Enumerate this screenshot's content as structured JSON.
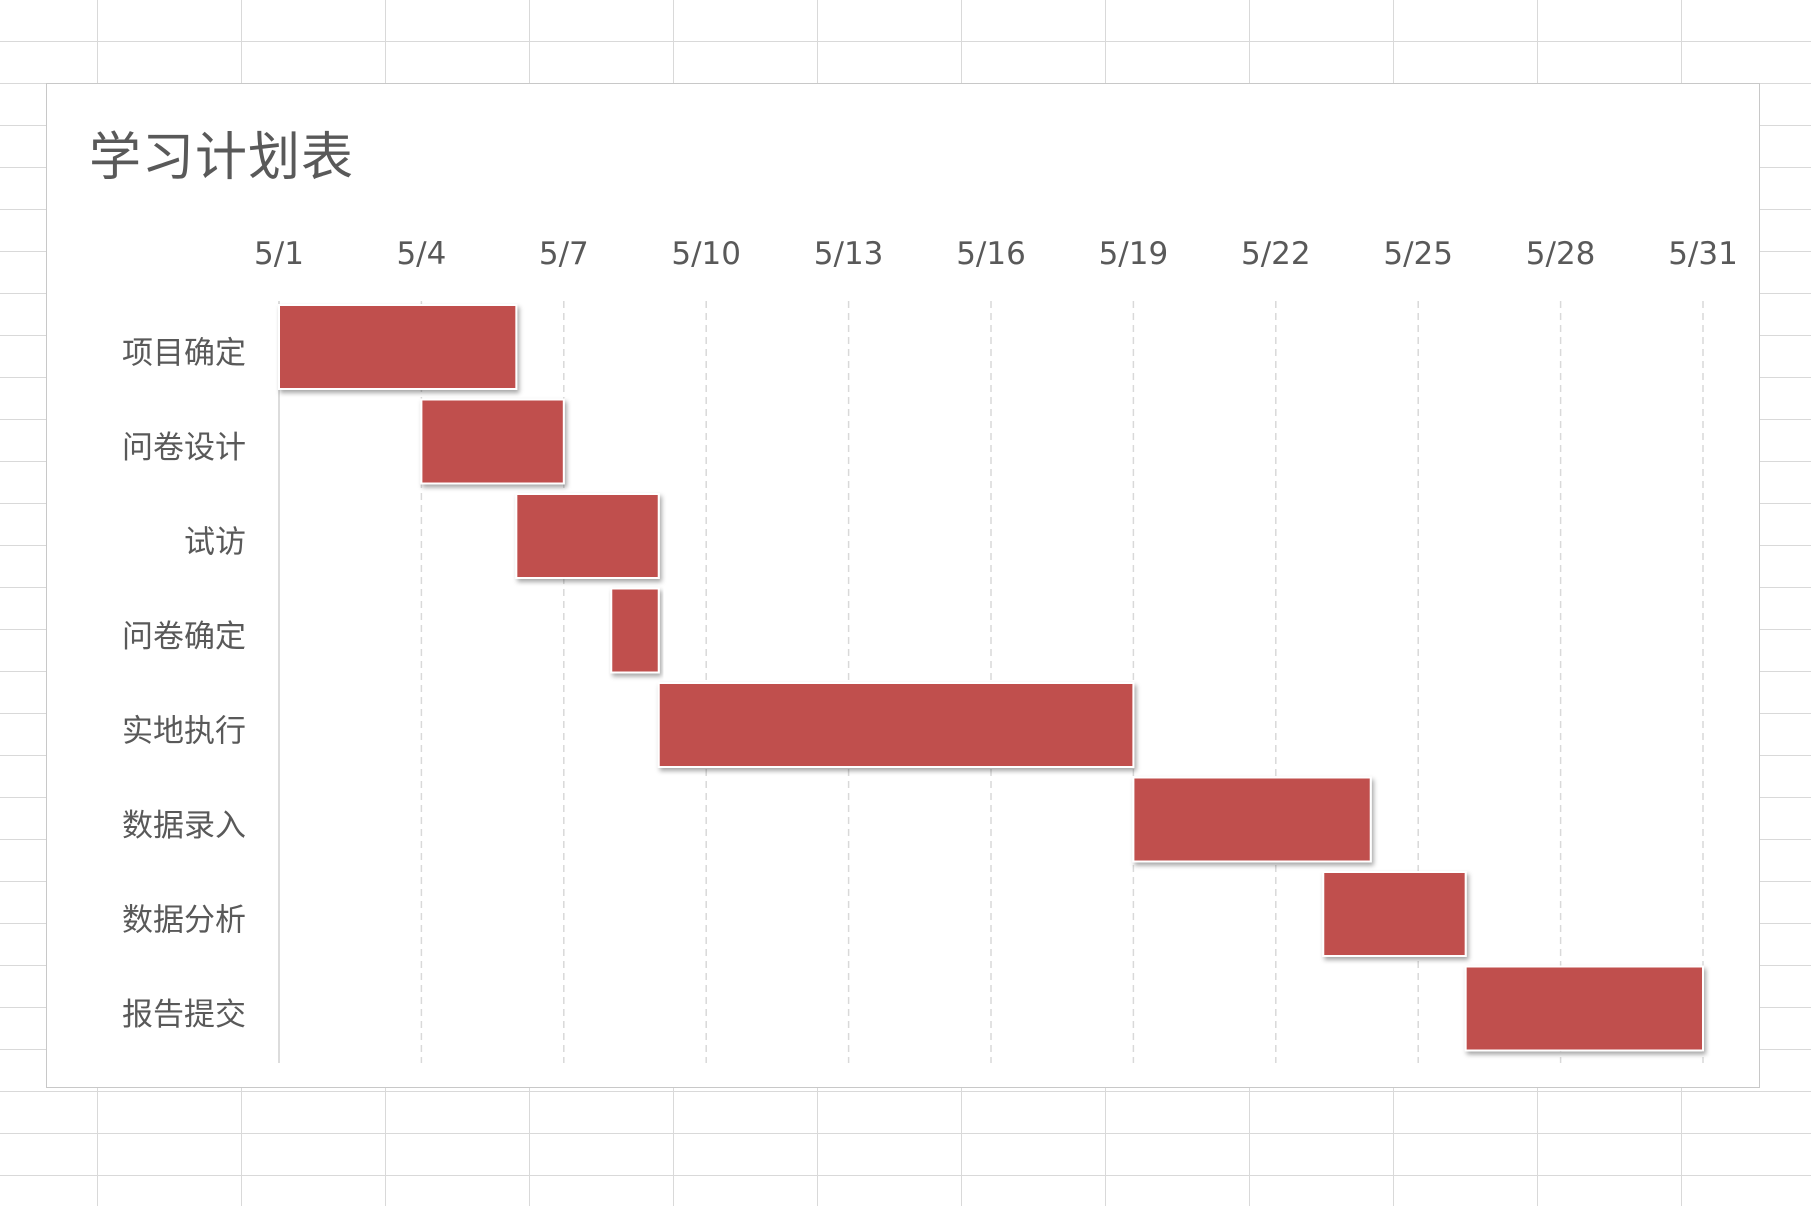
{
  "chart_data": {
    "type": "gantt",
    "title": "学习计划表",
    "xlabel": "",
    "ylabel": "",
    "x_range": [
      "5/1",
      "5/31"
    ],
    "x_ticks": [
      "5/1",
      "5/4",
      "5/7",
      "5/10",
      "5/13",
      "5/16",
      "5/19",
      "5/22",
      "5/25",
      "5/28",
      "5/31"
    ],
    "grid": "vertical dashed",
    "legend": "none",
    "bar_color": "#c0504d",
    "tasks": [
      {
        "name": "项目确定",
        "start": "5/1",
        "end": "5/6"
      },
      {
        "name": "问卷设计",
        "start": "5/4",
        "end": "5/7"
      },
      {
        "name": "试访",
        "start": "5/6",
        "end": "5/9"
      },
      {
        "name": "问卷确定",
        "start": "5/8",
        "end": "5/9"
      },
      {
        "name": "实地执行",
        "start": "5/9",
        "end": "5/19"
      },
      {
        "name": "数据录入",
        "start": "5/19",
        "end": "5/24"
      },
      {
        "name": "数据分析",
        "start": "5/23",
        "end": "5/26"
      },
      {
        "name": "报告提交",
        "start": "5/26",
        "end": "5/31"
      }
    ]
  }
}
